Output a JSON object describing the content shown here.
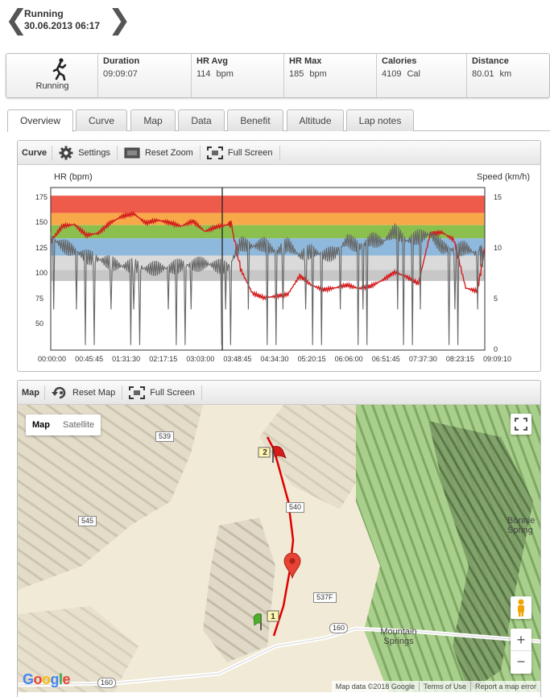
{
  "header": {
    "sport": "Running",
    "datetime": "30.06.2013 06:17",
    "prev_icon": "chevron-left-icon",
    "next_icon": "chevron-right-icon"
  },
  "stats": {
    "sport_label": "Running",
    "items": [
      {
        "label": "Duration",
        "value": "09:09:07",
        "unit": ""
      },
      {
        "label": "HR Avg",
        "value": "114",
        "unit": "bpm"
      },
      {
        "label": "HR Max",
        "value": "185",
        "unit": "bpm"
      },
      {
        "label": "Calories",
        "value": "4109",
        "unit": "Cal"
      },
      {
        "label": "Distance",
        "value": "80.01",
        "unit": "km"
      }
    ]
  },
  "tabs": [
    "Overview",
    "Curve",
    "Map",
    "Data",
    "Benefit",
    "Altitude",
    "Lap notes"
  ],
  "active_tab": "Overview",
  "curve_panel": {
    "title": "Curve",
    "settings": "Settings",
    "reset_zoom": "Reset Zoom",
    "full_screen": "Full Screen"
  },
  "chart_data": {
    "type": "line",
    "left_axis_label": "HR (bpm)",
    "right_axis_label": "Speed (km/h)",
    "left_ticks": [
      "175",
      "150",
      "125",
      "100",
      "75",
      "50"
    ],
    "right_ticks": [
      "15",
      "10",
      "5",
      "0"
    ],
    "x_ticks": [
      "00:00:00",
      "00:45:45",
      "01:31:30",
      "02:17:15",
      "03:03:00",
      "03:48:45",
      "04:34:30",
      "05:20:15",
      "06:06:00",
      "06:51:45",
      "07:37:30",
      "08:23:15",
      "09:09:10"
    ],
    "ylim_left": [
      25,
      185
    ],
    "ylim_right": [
      0,
      16
    ],
    "hr_zones": [
      {
        "from": 160,
        "to": 177,
        "color": "#ef5b4b"
      },
      {
        "from": 148,
        "to": 160,
        "color": "#f7a94a"
      },
      {
        "from": 135,
        "to": 148,
        "color": "#8cc04e"
      },
      {
        "from": 118,
        "to": 135,
        "color": "#8fb9dc"
      },
      {
        "from": 93,
        "to": 104,
        "color": "#c7c7c7"
      },
      {
        "from": 104,
        "to": 118,
        "color": "#dadada"
      }
    ],
    "series": [
      {
        "color": "#d41c1c",
        "axis": "left",
        "x_min": [
          0,
          15,
          30,
          45,
          60,
          75,
          90,
          105,
          120,
          135,
          150,
          165,
          180,
          195,
          210,
          225,
          228,
          240,
          255,
          270,
          285,
          300,
          315,
          330,
          345,
          360,
          375,
          390,
          405,
          420,
          435,
          450,
          465,
          480,
          495,
          510,
          525,
          540,
          549
        ],
        "values": [
          132,
          148,
          150,
          140,
          142,
          152,
          158,
          160,
          150,
          152,
          149,
          145,
          150,
          140,
          145,
          148,
          150,
          105,
          82,
          78,
          80,
          82,
          100,
          90,
          85,
          86,
          88,
          84,
          86,
          92,
          100,
          96,
          90,
          140,
          142,
          135,
          88,
          85,
          125
        ]
      },
      {
        "color": "#666666",
        "axis": "right",
        "x_min": [
          0,
          15,
          30,
          45,
          60,
          75,
          90,
          105,
          120,
          135,
          150,
          165,
          180,
          195,
          210,
          225,
          240,
          255,
          270,
          285,
          300,
          315,
          330,
          345,
          360,
          375,
          390,
          405,
          420,
          435,
          450,
          465,
          480,
          495,
          510,
          525,
          540,
          549
        ],
        "values": [
          10.5,
          10,
          9.8,
          9.5,
          9.5,
          9.3,
          9,
          9,
          8.5,
          8.3,
          8,
          8,
          7.8,
          7.8,
          7.5,
          7.5,
          10,
          10,
          10.5,
          10,
          11,
          10,
          10.5,
          10,
          10,
          11,
          10,
          10.5,
          10,
          11,
          10,
          10.5,
          11,
          10,
          10,
          10.5,
          10,
          9
        ]
      }
    ]
  },
  "map_panel": {
    "title": "Map",
    "reset_map": "Reset Map",
    "full_screen": "Full Screen",
    "type_map": "Map",
    "type_satellite": "Satellite",
    "roads": [
      "539",
      "545",
      "540",
      "537F",
      "160",
      "160"
    ],
    "places": {
      "bonnie": "Bonnie Spring",
      "mountain": "Mountain Springs"
    },
    "markers": {
      "start": "1",
      "end": "2"
    },
    "footer": [
      "Map data ©2018 Google",
      "Terms of Use",
      "Report a map error"
    ],
    "logo": "Google",
    "zoom_in": "+",
    "zoom_out": "−"
  }
}
